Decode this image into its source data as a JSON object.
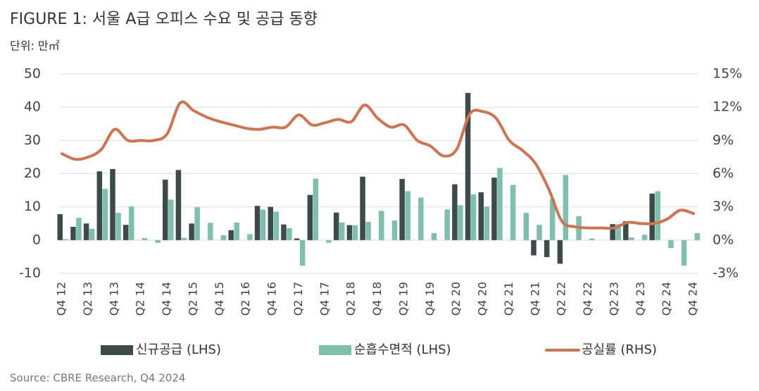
{
  "chart_data": {
    "type": "bar-line",
    "title": "FIGURE 1: 서울 A급 오피스 수요 및 공급 동향",
    "subtitle": "단위: 만㎡",
    "source": "Source: CBRE Research, Q4 2024",
    "categories": [
      "Q4 12",
      null,
      "Q2 13",
      null,
      "Q4 13",
      null,
      "Q2 14",
      null,
      "Q4 14",
      null,
      "Q2 15",
      null,
      "Q4 15",
      null,
      "Q2 16",
      null,
      "Q4 16",
      null,
      "Q2 17",
      null,
      "Q4 17",
      null,
      "Q2 18",
      null,
      "Q4 18",
      null,
      "Q2 19",
      null,
      "Q4 19",
      null,
      "Q2 20",
      null,
      "Q4 20",
      null,
      "Q2 21",
      null,
      "Q4 21",
      null,
      "Q2 22",
      null,
      "Q4 22",
      null,
      "Q2 23",
      null,
      "Q4 23",
      null,
      "Q2 24",
      null,
      "Q4 24"
    ],
    "series": [
      {
        "name": "신규공급 (LHS)",
        "color": "#3d4a4a",
        "kind": "bar",
        "values": [
          7.8,
          4,
          5,
          20.7,
          21.4,
          4.6,
          0,
          0,
          18.2,
          21.1,
          5,
          0,
          0,
          3,
          0,
          10.3,
          10,
          4.7,
          0.5,
          13.6,
          0,
          8.3,
          4.5,
          19.1,
          0,
          0,
          18.4,
          0,
          0,
          0,
          16.8,
          44.3,
          14.4,
          18.8,
          0,
          0,
          -4.6,
          -5.1,
          -7.1,
          0,
          0,
          0,
          4.8,
          5.7,
          0,
          14,
          0,
          0,
          0
        ]
      },
      {
        "name": "순흡수면적 (LHS)",
        "color": "#7fbfae",
        "kind": "bar",
        "values": [
          0.3,
          6.7,
          3.4,
          15.4,
          8.2,
          10.1,
          0.6,
          -0.8,
          12.2,
          0.7,
          9.9,
          5.2,
          1.5,
          5.3,
          1.8,
          9.2,
          8.6,
          3.6,
          -7.7,
          18.5,
          -0.8,
          5.3,
          4.5,
          5.5,
          8.8,
          5.9,
          14.7,
          12.8,
          2.1,
          9.2,
          10.5,
          13.8,
          10.1,
          21.7,
          16.6,
          8.2,
          4.6,
          12.4,
          19.6,
          7.2,
          0.5,
          0,
          4.8,
          0.8,
          1.6,
          14.7,
          -2.4,
          -7.7,
          2.1
        ]
      },
      {
        "name": "공실률 (RHS)",
        "color": "#d2734f",
        "kind": "line",
        "axis": "y2",
        "values": [
          7.8,
          7.3,
          7.5,
          8.2,
          10.0,
          9.0,
          9.0,
          9.0,
          9.6,
          12.4,
          11.7,
          11.1,
          10.7,
          10.4,
          10.1,
          10.0,
          10.2,
          10.2,
          11.3,
          10.4,
          10.6,
          10.9,
          10.7,
          12.2,
          11.0,
          10.2,
          10.4,
          9.0,
          8.5,
          7.6,
          8.2,
          11.4,
          11.6,
          11.0,
          9.0,
          8.1,
          6.9,
          4.6,
          1.7,
          1.2,
          1.1,
          1.1,
          1.1,
          1.6,
          1.5,
          1.5,
          1.9,
          2.7,
          2.4
        ]
      }
    ],
    "ylim": [
      -10,
      50
    ],
    "yticks": [
      -10,
      0,
      10,
      20,
      30,
      40,
      50
    ],
    "y2lim": [
      -3,
      15
    ],
    "y2ticks": [
      {
        "value": -3,
        "label": "-3%"
      },
      {
        "value": 0,
        "label": "0%"
      },
      {
        "value": 3,
        "label": "3%"
      },
      {
        "value": 6,
        "label": "6%"
      },
      {
        "value": 9,
        "label": "9%"
      },
      {
        "value": 12,
        "label": "12%"
      },
      {
        "value": 15,
        "label": "15%"
      }
    ],
    "grid": true
  }
}
